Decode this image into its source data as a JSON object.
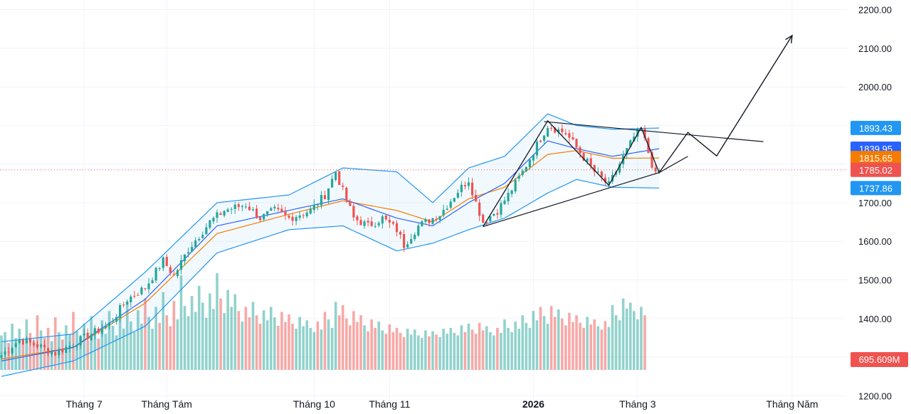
{
  "chart_data": {
    "type": "candlestick",
    "title": "",
    "y_axis": {
      "range": [
        1184,
        2212
      ],
      "ticks": [
        {
          "value": 2200,
          "label": "2200.00"
        },
        {
          "value": 2100,
          "label": "2100.00"
        },
        {
          "value": 2000,
          "label": "2000.00"
        },
        {
          "value": 1900,
          "label": "1900.00"
        },
        {
          "value": 1800,
          "label": "1800.00"
        },
        {
          "value": 1700,
          "label": "1700.00"
        },
        {
          "value": 1600,
          "label": "1600.00"
        },
        {
          "value": 1500,
          "label": "1500.00"
        },
        {
          "value": 1400,
          "label": "1400.00"
        },
        {
          "value": 1300,
          "label": "1300.00"
        },
        {
          "value": 1200,
          "label": "1200.00"
        }
      ]
    },
    "x_axis": {
      "labels": [
        {
          "label": "Tháng 7",
          "bar": 23,
          "bold": false
        },
        {
          "label": "Tháng Tám",
          "bar": 46,
          "bold": false
        },
        {
          "label": "Tháng 10",
          "bar": 87,
          "bold": false
        },
        {
          "label": "Tháng 11",
          "bar": 108,
          "bold": false
        },
        {
          "label": "2026",
          "bar": 148,
          "bold": true
        },
        {
          "label": "Tháng 3",
          "bar": 177,
          "bold": false
        },
        {
          "label": "Tháng Năm",
          "bar": 220,
          "bold": false
        }
      ],
      "total_slots": 255
    },
    "price_tags": [
      {
        "value": 1893.43,
        "label": "1893.43",
        "color": "#2196f3"
      },
      {
        "value": 1839.95,
        "label": "1839.95",
        "color": "#2962ff"
      },
      {
        "value": 1815.65,
        "label": "1815.65",
        "color": "#f57c00"
      },
      {
        "value": 1785.02,
        "label": "1785.02",
        "color": "#ef5350"
      },
      {
        "value": 1737.86,
        "label": "1737.86",
        "color": "#2196f3"
      }
    ],
    "volume_tag": {
      "label": "695.609M",
      "color": "#ef5350"
    },
    "current_price": 1785.02,
    "anchors": [
      [
        0,
        1305
      ],
      [
        5,
        1345
      ],
      [
        10,
        1330
      ],
      [
        15,
        1310
      ],
      [
        20,
        1335
      ],
      [
        25,
        1360
      ],
      [
        30,
        1385
      ],
      [
        35,
        1450
      ],
      [
        40,
        1480
      ],
      [
        45,
        1550
      ],
      [
        48,
        1510
      ],
      [
        52,
        1580
      ],
      [
        58,
        1650
      ],
      [
        62,
        1680
      ],
      [
        68,
        1695
      ],
      [
        72,
        1660
      ],
      [
        76,
        1680
      ],
      [
        80,
        1660
      ],
      [
        86,
        1680
      ],
      [
        90,
        1720
      ],
      [
        93,
        1780
      ],
      [
        95,
        1730
      ],
      [
        98,
        1660
      ],
      [
        102,
        1640
      ],
      [
        106,
        1660
      ],
      [
        110,
        1630
      ],
      [
        112,
        1590
      ],
      [
        116,
        1640
      ],
      [
        122,
        1670
      ],
      [
        127,
        1730
      ],
      [
        130,
        1760
      ],
      [
        132,
        1700
      ],
      [
        134,
        1650
      ],
      [
        138,
        1680
      ],
      [
        141,
        1720
      ],
      [
        145,
        1780
      ],
      [
        149,
        1850
      ],
      [
        152,
        1900
      ],
      [
        157,
        1880
      ],
      [
        161,
        1830
      ],
      [
        165,
        1780
      ],
      [
        169,
        1745
      ],
      [
        172,
        1800
      ],
      [
        176,
        1870
      ],
      [
        178,
        1890
      ],
      [
        180,
        1830
      ],
      [
        182,
        1770
      ],
      [
        183,
        1785.02
      ]
    ],
    "bands": {
      "upper": [
        [
          0,
          1340
        ],
        [
          20,
          1360
        ],
        [
          40,
          1520
        ],
        [
          60,
          1700
        ],
        [
          80,
          1720
        ],
        [
          95,
          1790
        ],
        [
          110,
          1780
        ],
        [
          120,
          1700
        ],
        [
          130,
          1790
        ],
        [
          140,
          1820
        ],
        [
          152,
          1930
        ],
        [
          160,
          1900
        ],
        [
          170,
          1890
        ],
        [
          183,
          1893.43
        ]
      ],
      "lower": [
        [
          0,
          1250
        ],
        [
          20,
          1290
        ],
        [
          40,
          1380
        ],
        [
          60,
          1570
        ],
        [
          80,
          1630
        ],
        [
          95,
          1640
        ],
        [
          110,
          1575
        ],
        [
          120,
          1595
        ],
        [
          130,
          1630
        ],
        [
          140,
          1660
        ],
        [
          152,
          1725
        ],
        [
          160,
          1760
        ],
        [
          170,
          1740
        ],
        [
          183,
          1737.86
        ]
      ],
      "mid": [
        [
          0,
          1295
        ],
        [
          20,
          1325
        ],
        [
          40,
          1440
        ],
        [
          60,
          1620
        ],
        [
          80,
          1670
        ],
        [
          95,
          1705
        ],
        [
          110,
          1680
        ],
        [
          120,
          1650
        ],
        [
          130,
          1710
        ],
        [
          140,
          1740
        ],
        [
          152,
          1825
        ],
        [
          160,
          1835
        ],
        [
          170,
          1815
        ],
        [
          183,
          1815.65
        ]
      ],
      "ma": [
        [
          0,
          1265
        ],
        [
          20,
          1310
        ],
        [
          40,
          1410
        ],
        [
          60,
          1570
        ],
        [
          80,
          1660
        ],
        [
          95,
          1690
        ],
        [
          110,
          1685
        ],
        [
          120,
          1650
        ],
        [
          130,
          1680
        ],
        [
          140,
          1710
        ],
        [
          152,
          1780
        ],
        [
          160,
          1820
        ],
        [
          170,
          1810
        ],
        [
          183,
          1815.65
        ]
      ],
      "ema": [
        [
          0,
          1290
        ],
        [
          20,
          1325
        ],
        [
          40,
          1450
        ],
        [
          60,
          1640
        ],
        [
          80,
          1680
        ],
        [
          95,
          1710
        ],
        [
          110,
          1660
        ],
        [
          120,
          1640
        ],
        [
          130,
          1700
        ],
        [
          140,
          1750
        ],
        [
          152,
          1860
        ],
        [
          160,
          1840
        ],
        [
          170,
          1820
        ],
        [
          183,
          1839.95
        ]
      ]
    },
    "projection": [
      [
        183,
        1778
      ],
      [
        191,
        1882
      ],
      [
        199,
        1821
      ],
      [
        220,
        2133
      ]
    ],
    "trendlines": [
      [
        [
          151,
          1910
        ],
        [
          212,
          1858
        ]
      ],
      [
        [
          134,
          1638
        ],
        [
          183,
          1778
        ]
      ],
      [
        [
          183,
          1778
        ],
        [
          191,
          1820
        ]
      ]
    ],
    "zigzag": [
      [
        134,
        1638
      ],
      [
        152,
        1912
      ],
      [
        169,
        1745
      ],
      [
        178,
        1895
      ],
      [
        183,
        1778
      ]
    ],
    "volume": {
      "max_millions": 2200,
      "values": [
        820,
        900,
        640,
        1100,
        760,
        980,
        620,
        1200,
        880,
        700,
        1300,
        940,
        760,
        1000,
        680,
        1250,
        900,
        720,
        1060,
        850,
        1380,
        920,
        780,
        1100,
        690,
        1280,
        950,
        740,
        1180,
        860,
        1400,
        1050,
        820,
        1320,
        980,
        1600,
        1150,
        900,
        1420,
        1100,
        1700,
        1260,
        980,
        1500,
        1120,
        1850,
        1300,
        1040,
        1640,
        1200,
        2250,
        1520,
        1280,
        1760,
        1380,
        2000,
        1600,
        1240,
        1820,
        1450,
        2300,
        1700,
        1350,
        1900,
        1500,
        1800,
        1400,
        1150,
        1500,
        1250,
        1620,
        1300,
        1100,
        1420,
        1180,
        1500,
        1250,
        1050,
        1380,
        1140,
        1320,
        1100,
        980,
        1260,
        1040,
        1180,
        1000,
        900,
        1150,
        960,
        1380,
        1200,
        1000,
        1620,
        1300,
        1540,
        1220,
        1060,
        1400,
        1140,
        1300,
        1060,
        920,
        1200,
        1000,
        1150,
        940,
        860,
        1080,
        900,
        1000,
        880,
        780,
        980,
        840,
        960,
        820,
        760,
        940,
        800,
        920,
        840,
        780,
        980,
        860,
        1000,
        880,
        820,
        1060,
        900,
        1100,
        960,
        860,
        1120,
        940,
        1040,
        900,
        820,
        1000,
        880,
        1200,
        1000,
        900,
        1150,
        980,
        1300,
        1120,
        1000,
        1400,
        1180,
        1500,
        1280,
        1100,
        1520,
        1260,
        1440,
        1220,
        1060,
        1360,
        1140,
        1300,
        1120,
        1000,
        1260,
        1080,
        1200,
        1040,
        960,
        1160,
        1020,
        1540,
        1300,
        1180,
        1700,
        1460,
        1600,
        1400,
        1200,
        1500,
        1300
      ]
    }
  }
}
